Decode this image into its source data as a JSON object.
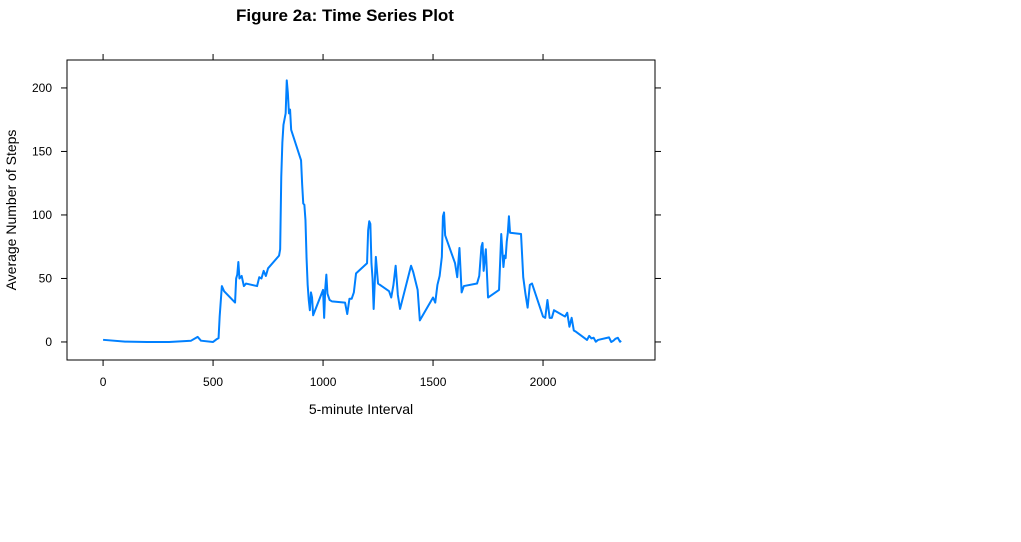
{
  "chart_data": {
    "type": "line",
    "title": "Figure 2a: Time Series Plot",
    "x_label": "5-minute Interval",
    "y_label": "Average Number of Steps",
    "x": [
      0,
      100,
      200,
      300,
      400,
      430,
      445,
      500,
      515,
      525,
      530,
      540,
      550,
      600,
      605,
      610,
      615,
      620,
      630,
      640,
      650,
      700,
      710,
      720,
      730,
      740,
      750,
      800,
      805,
      810,
      815,
      820,
      830,
      835,
      840,
      845,
      850,
      855,
      900,
      905,
      910,
      915,
      920,
      925,
      930,
      935,
      940,
      945,
      950,
      955,
      1000,
      1005,
      1010,
      1015,
      1020,
      1030,
      1040,
      1100,
      1110,
      1120,
      1130,
      1140,
      1150,
      1200,
      1205,
      1210,
      1215,
      1220,
      1225,
      1230,
      1240,
      1250,
      1300,
      1310,
      1320,
      1330,
      1340,
      1350,
      1400,
      1410,
      1420,
      1430,
      1440,
      1500,
      1510,
      1520,
      1530,
      1540,
      1545,
      1550,
      1555,
      1600,
      1610,
      1620,
      1630,
      1640,
      1700,
      1710,
      1720,
      1725,
      1730,
      1740,
      1750,
      1800,
      1810,
      1820,
      1825,
      1830,
      1835,
      1840,
      1845,
      1850,
      1900,
      1910,
      1920,
      1930,
      1940,
      1950,
      2000,
      2010,
      2020,
      2030,
      2040,
      2050,
      2100,
      2110,
      2120,
      2130,
      2140,
      2150,
      2200,
      2210,
      2220,
      2230,
      2240,
      2250,
      2300,
      2310,
      2320,
      2330,
      2340,
      2350,
      2355
    ],
    "series": [
      {
        "name": "Average Number of Steps",
        "color": "#0080ff",
        "values": [
          1.7,
          0.3,
          0,
          0,
          1,
          4,
          1,
          0,
          2,
          3,
          20,
          44,
          40,
          31,
          50,
          53,
          63,
          50,
          52,
          44,
          46,
          44,
          51,
          50,
          56,
          52,
          58,
          68,
          73,
          130,
          157,
          171,
          180,
          206,
          196,
          180,
          183,
          167,
          143,
          124,
          109,
          108,
          96,
          66,
          45,
          33,
          25,
          39,
          35,
          21,
          41,
          19,
          42,
          53,
          38,
          33,
          32,
          31,
          22,
          34,
          34,
          39,
          54,
          62,
          88,
          95,
          93,
          62,
          50,
          26,
          67,
          46,
          40,
          35,
          45,
          60,
          37,
          26,
          60,
          55,
          48,
          41,
          17,
          35,
          31,
          45,
          52,
          67,
          99,
          102,
          84,
          62,
          51,
          74,
          39,
          44,
          46,
          52,
          75,
          78,
          56,
          73,
          35,
          41,
          85,
          59,
          68,
          66,
          79,
          86,
          99,
          86,
          85,
          51,
          38,
          27,
          45,
          46,
          20,
          19,
          33,
          19,
          19,
          25,
          20,
          23,
          12,
          19,
          9,
          8,
          1.6,
          4.8,
          2.8,
          3.3,
          0.2,
          1.6,
          3.6,
          0,
          1,
          2.6,
          3.3,
          0.2,
          1
        ]
      }
    ],
    "xlim": [
      -164,
      2509
    ],
    "xticks": [
      0,
      500,
      1000,
      1500,
      2000
    ],
    "ylim": [
      -14.2,
      222
    ],
    "yticks": [
      0,
      50,
      100,
      150,
      200
    ]
  }
}
